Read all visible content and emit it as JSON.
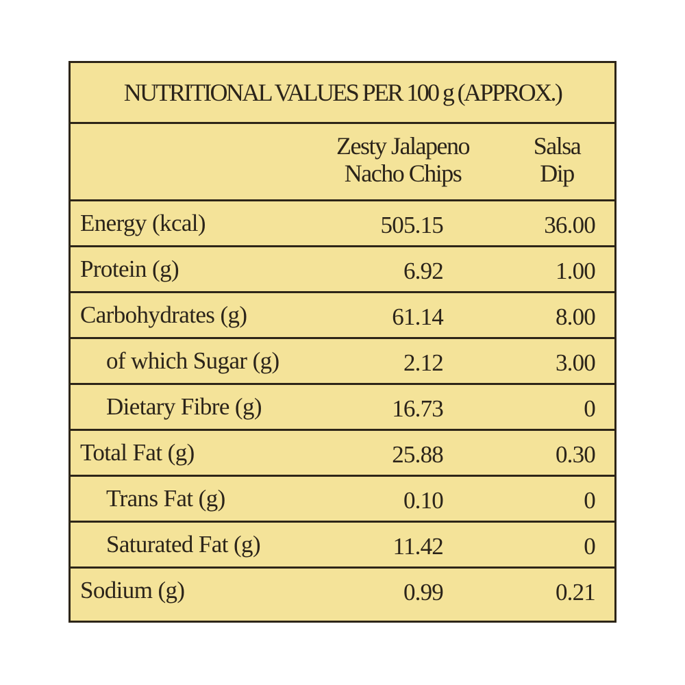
{
  "title": "NUTRITIONAL VALUES PER 100 g (APPROX.)",
  "columns": [
    {
      "line1": "Zesty Jalapeno",
      "line2": "Nacho Chips"
    },
    {
      "line1": "Salsa",
      "line2": "Dip"
    }
  ],
  "rows": [
    {
      "label": "Energy (kcal)",
      "chips": "505.15",
      "salsa": "36.00"
    },
    {
      "label": "Protein (g)",
      "chips": "6.92",
      "salsa": "1.00"
    },
    {
      "label": "Carbohydrates (g)",
      "chips": "61.14",
      "salsa": "8.00"
    },
    {
      "label": "of which Sugar (g)",
      "chips": "2.12",
      "salsa": "3.00"
    },
    {
      "label": "Dietary Fibre (g)",
      "chips": "16.73",
      "salsa": "0"
    },
    {
      "label": "Total Fat (g)",
      "chips": "25.88",
      "salsa": "0.30"
    },
    {
      "label": "Trans Fat (g)",
      "chips": "0.10",
      "salsa": "0"
    },
    {
      "label": "Saturated Fat (g)",
      "chips": "11.42",
      "salsa": "0"
    },
    {
      "label": "Sodium (g)",
      "chips": "0.99",
      "salsa": "0.21"
    }
  ],
  "colors": {
    "background": "#f4e399",
    "border": "#2d2518",
    "text": "#2b241a"
  }
}
